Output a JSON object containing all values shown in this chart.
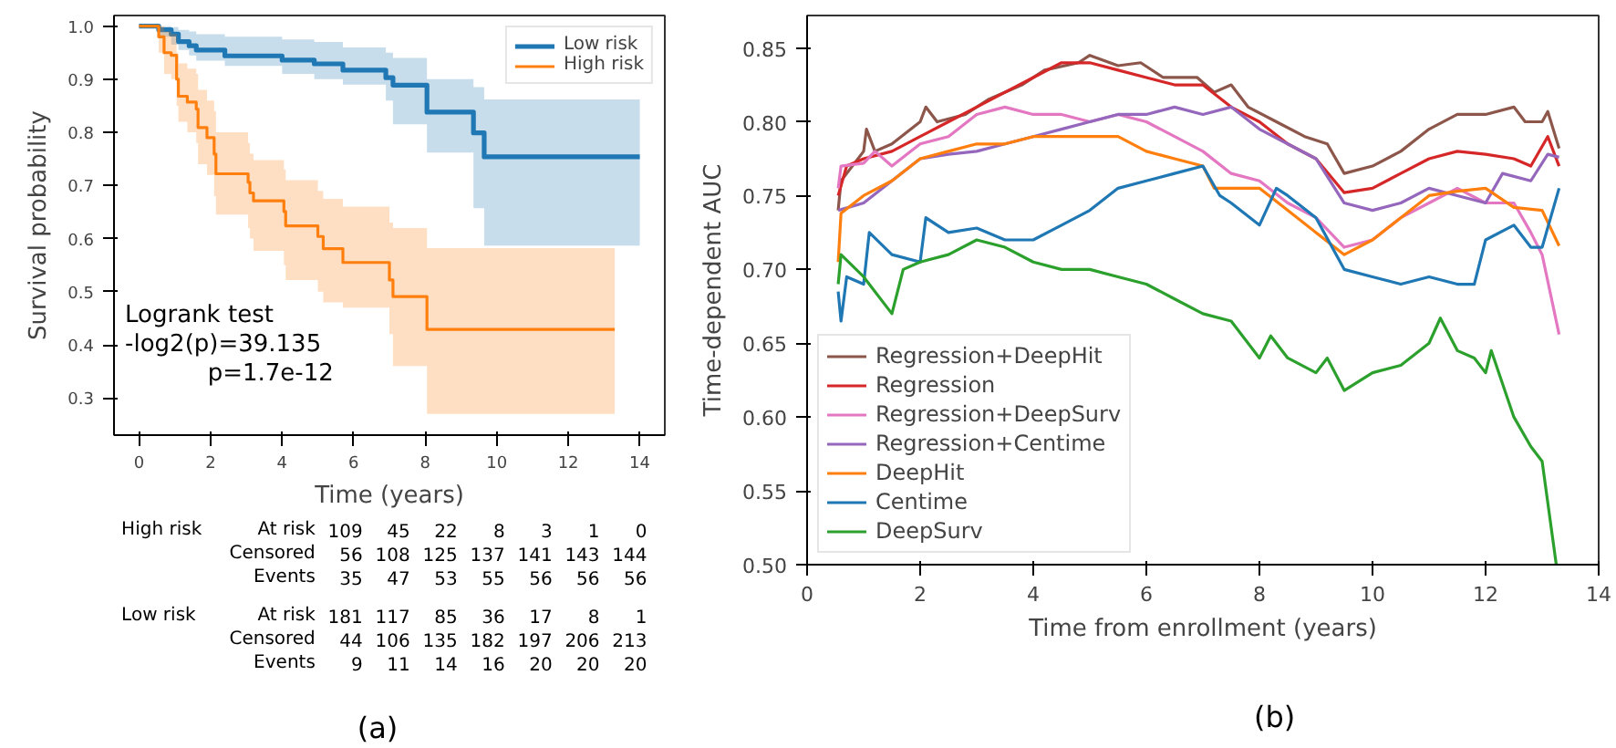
{
  "chart_data": [
    {
      "type": "step",
      "xlabel": "Time (years)",
      "ylabel": "Survival probability",
      "xlim": [
        -0.7,
        14.7
      ],
      "ylim": [
        0.23,
        1.02
      ],
      "xticks": [
        0,
        2,
        4,
        6,
        8,
        10,
        12,
        14
      ],
      "yticks": [
        0.3,
        0.4,
        0.5,
        0.6,
        0.7,
        0.8,
        0.9,
        {
          "value": 1,
          "label": "1.0"
        }
      ],
      "grid": false,
      "legend": "top right",
      "series": [
        {
          "name": "Low risk",
          "color": "#1f77b4",
          "x": [
            0,
            0.55,
            0.9,
            1.1,
            1.4,
            1.6,
            2.4,
            4.0,
            4.9,
            5.7,
            6.9,
            7.1,
            8.05,
            9.35,
            9.65,
            14.0
          ],
          "values": [
            1,
            0.993,
            0.985,
            0.971,
            0.963,
            0.955,
            0.944,
            0.936,
            0.929,
            0.917,
            0.903,
            0.889,
            0.838,
            0.799,
            0.754,
            0.754
          ],
          "lower": [
            1,
            0.98,
            0.965,
            0.955,
            0.945,
            0.935,
            0.925,
            0.91,
            0.9,
            0.89,
            0.86,
            0.815,
            0.762,
            0.657,
            0.587,
            0.587
          ],
          "upper": [
            1,
            1,
            0.998,
            0.993,
            0.99,
            0.985,
            0.98,
            0.975,
            0.97,
            0.96,
            0.95,
            0.94,
            0.9,
            0.885,
            0.862,
            0.862
          ]
        },
        {
          "name": "High risk",
          "color": "#ff7f0e",
          "x": [
            0,
            0.55,
            0.7,
            0.9,
            1.05,
            1.1,
            1.35,
            1.6,
            1.65,
            1.9,
            2.1,
            2.15,
            3.05,
            3.1,
            3.2,
            4.05,
            4.1,
            5.0,
            5.15,
            5.7,
            7.0,
            7.1,
            8.05,
            13.3
          ],
          "values": [
            1,
            0.98,
            0.95,
            0.945,
            0.9,
            0.868,
            0.857,
            0.844,
            0.809,
            0.79,
            0.759,
            0.722,
            0.706,
            0.686,
            0.671,
            0.651,
            0.624,
            0.604,
            0.581,
            0.555,
            0.522,
            0.491,
            0.429,
            0.429
          ],
          "lower": [
            1,
            0.95,
            0.91,
            0.9,
            0.85,
            0.82,
            0.8,
            0.78,
            0.74,
            0.72,
            0.68,
            0.645,
            0.62,
            0.6,
            0.577,
            0.55,
            0.522,
            0.5,
            0.48,
            0.47,
            0.42,
            0.36,
            0.27,
            0.27
          ],
          "upper": [
            1,
            1,
            0.99,
            0.985,
            0.95,
            0.93,
            0.92,
            0.91,
            0.88,
            0.86,
            0.84,
            0.8,
            0.78,
            0.76,
            0.748,
            0.73,
            0.71,
            0.69,
            0.675,
            0.66,
            0.63,
            0.62,
            0.582,
            0.582
          ]
        }
      ],
      "annotations": [
        "Logrank test",
        "-log2(p)=39.135",
        "p=1.7e-12",
        "High risk",
        "At risk 109 45 22 8 3 1 0",
        "Censored 56 108 125 137 141 143 144",
        "Events 35 47 53 55 56 56 56",
        "Low risk",
        "At risk 181 117 85 36 17 8 1",
        "Censored 44 106 135 182 197 206 213",
        "Events 9 11 14 16 20 20 20",
        "(a)"
      ]
    },
    {
      "type": "line",
      "xlabel": "Time from enrollment (years)",
      "ylabel": "Time-dependent AUC",
      "xlim": [
        0,
        14
      ],
      "ylim": [
        0.5,
        0.872
      ],
      "xticks": [
        0,
        2,
        4,
        6,
        8,
        10,
        12,
        14
      ],
      "yticks": [
        {
          "value": 0.5,
          "label": "0.50"
        },
        {
          "value": 0.55,
          "label": "0.55"
        },
        {
          "value": 0.6,
          "label": "0.60"
        },
        {
          "value": 0.65,
          "label": "0.65"
        },
        {
          "value": 0.7,
          "label": "0.70"
        },
        {
          "value": 0.75,
          "label": "0.75"
        },
        {
          "value": 0.8,
          "label": "0.80"
        },
        {
          "value": 0.85,
          "label": "0.85"
        }
      ],
      "grid": false,
      "legend": "bottom left",
      "series": [
        {
          "name": "Regression+DeepHit",
          "color": "#8c564b",
          "x": [
            0.55,
            0.6,
            1.0,
            1.05,
            1.2,
            1.5,
            2.0,
            2.1,
            2.3,
            2.8,
            3.2,
            3.8,
            4.2,
            4.8,
            5.0,
            5.5,
            5.9,
            6.3,
            6.9,
            7.2,
            7.5,
            7.8,
            8.3,
            8.8,
            9.2,
            9.5,
            10.0,
            10.5,
            11.0,
            11.5,
            12.0,
            12.5,
            12.7,
            13.0,
            13.1,
            13.3
          ],
          "values": [
            0.74,
            0.76,
            0.78,
            0.795,
            0.78,
            0.785,
            0.8,
            0.81,
            0.8,
            0.805,
            0.815,
            0.825,
            0.835,
            0.84,
            0.845,
            0.838,
            0.84,
            0.83,
            0.83,
            0.82,
            0.825,
            0.81,
            0.8,
            0.79,
            0.785,
            0.765,
            0.77,
            0.78,
            0.795,
            0.805,
            0.805,
            0.81,
            0.8,
            0.8,
            0.807,
            0.782
          ]
        },
        {
          "name": "Regression",
          "color": "#d62728",
          "x": [
            0.55,
            0.7,
            1.0,
            1.5,
            2.0,
            2.5,
            3.0,
            3.5,
            4.0,
            4.5,
            5.0,
            5.5,
            6.0,
            6.5,
            7.0,
            7.5,
            8.0,
            8.5,
            9.0,
            9.5,
            10.0,
            10.5,
            11.0,
            11.5,
            12.0,
            12.5,
            12.8,
            13.1,
            13.3
          ],
          "values": [
            0.75,
            0.77,
            0.775,
            0.78,
            0.79,
            0.8,
            0.81,
            0.82,
            0.83,
            0.84,
            0.84,
            0.835,
            0.83,
            0.825,
            0.825,
            0.81,
            0.8,
            0.785,
            0.775,
            0.752,
            0.755,
            0.765,
            0.775,
            0.78,
            0.778,
            0.775,
            0.77,
            0.79,
            0.77
          ]
        },
        {
          "name": "Regression+DeepSurv",
          "color": "#e377c2",
          "x": [
            0.55,
            0.6,
            1.0,
            1.2,
            1.5,
            2.0,
            2.5,
            3.0,
            3.5,
            4.0,
            4.5,
            5.0,
            5.5,
            6.0,
            6.5,
            7.0,
            7.5,
            8.0,
            8.5,
            9.0,
            9.5,
            10.0,
            10.5,
            11.0,
            11.5,
            12.0,
            12.5,
            12.8,
            13.0,
            13.3
          ],
          "values": [
            0.755,
            0.77,
            0.772,
            0.78,
            0.77,
            0.785,
            0.79,
            0.805,
            0.81,
            0.805,
            0.805,
            0.8,
            0.805,
            0.8,
            0.79,
            0.78,
            0.765,
            0.76,
            0.745,
            0.735,
            0.715,
            0.72,
            0.735,
            0.745,
            0.755,
            0.745,
            0.745,
            0.725,
            0.71,
            0.656
          ]
        },
        {
          "name": "Regression+Centime",
          "color": "#9467bd",
          "x": [
            0.55,
            1.0,
            1.5,
            2.0,
            2.5,
            3.0,
            3.5,
            4.0,
            4.5,
            5.0,
            5.5,
            6.0,
            6.5,
            7.0,
            7.5,
            8.0,
            8.5,
            9.0,
            9.5,
            10.0,
            10.5,
            11.0,
            11.5,
            12.0,
            12.3,
            12.8,
            13.1,
            13.3
          ],
          "values": [
            0.74,
            0.745,
            0.76,
            0.775,
            0.778,
            0.78,
            0.785,
            0.79,
            0.795,
            0.8,
            0.805,
            0.805,
            0.81,
            0.805,
            0.81,
            0.795,
            0.785,
            0.775,
            0.745,
            0.74,
            0.745,
            0.755,
            0.75,
            0.745,
            0.765,
            0.76,
            0.778,
            0.776
          ]
        },
        {
          "name": "DeepHit",
          "color": "#ff7f0e",
          "x": [
            0.55,
            0.6,
            1.0,
            1.5,
            2.0,
            2.5,
            3.0,
            3.5,
            4.0,
            4.5,
            5.0,
            5.5,
            6.0,
            6.5,
            7.0,
            7.2,
            7.5,
            8.0,
            8.5,
            9.0,
            9.5,
            10.0,
            10.5,
            11.0,
            11.5,
            12.0,
            12.5,
            13.0,
            13.3
          ],
          "values": [
            0.705,
            0.738,
            0.75,
            0.76,
            0.775,
            0.78,
            0.785,
            0.785,
            0.79,
            0.79,
            0.79,
            0.79,
            0.78,
            0.775,
            0.77,
            0.755,
            0.755,
            0.755,
            0.74,
            0.725,
            0.71,
            0.72,
            0.735,
            0.75,
            0.753,
            0.755,
            0.742,
            0.74,
            0.716
          ]
        },
        {
          "name": "Centime",
          "color": "#1f77b4",
          "x": [
            0.55,
            0.6,
            0.7,
            1.0,
            1.1,
            1.5,
            2.0,
            2.1,
            2.5,
            3.0,
            3.5,
            4.0,
            4.5,
            5.0,
            5.5,
            6.0,
            6.5,
            7.0,
            7.3,
            7.5,
            8.0,
            8.3,
            8.5,
            9.0,
            9.5,
            10.0,
            10.5,
            11.0,
            11.5,
            11.8,
            12.0,
            12.5,
            12.8,
            13.0,
            13.3
          ],
          "values": [
            0.685,
            0.665,
            0.695,
            0.69,
            0.725,
            0.71,
            0.705,
            0.735,
            0.725,
            0.728,
            0.72,
            0.72,
            0.73,
            0.74,
            0.755,
            0.76,
            0.765,
            0.77,
            0.75,
            0.745,
            0.73,
            0.755,
            0.75,
            0.735,
            0.7,
            0.695,
            0.69,
            0.695,
            0.69,
            0.69,
            0.72,
            0.73,
            0.715,
            0.715,
            0.755
          ]
        },
        {
          "name": "DeepSurv",
          "color": "#2ca02c",
          "x": [
            0.55,
            0.6,
            1.0,
            1.5,
            1.7,
            2.0,
            2.5,
            3.0,
            3.5,
            4.0,
            4.5,
            5.0,
            5.5,
            6.0,
            6.5,
            7.0,
            7.5,
            8.0,
            8.2,
            8.5,
            9.0,
            9.2,
            9.5,
            10.0,
            10.5,
            11.0,
            11.2,
            11.5,
            11.8,
            12.0,
            12.1,
            12.5,
            12.8,
            13.0,
            13.25
          ],
          "values": [
            0.69,
            0.71,
            0.695,
            0.67,
            0.7,
            0.705,
            0.71,
            0.72,
            0.715,
            0.705,
            0.7,
            0.7,
            0.695,
            0.69,
            0.68,
            0.67,
            0.665,
            0.64,
            0.655,
            0.64,
            0.63,
            0.64,
            0.618,
            0.63,
            0.635,
            0.65,
            0.667,
            0.645,
            0.64,
            0.63,
            0.645,
            0.6,
            0.58,
            0.57,
            0.5
          ]
        }
      ],
      "annotations": [
        "(b)"
      ]
    }
  ]
}
